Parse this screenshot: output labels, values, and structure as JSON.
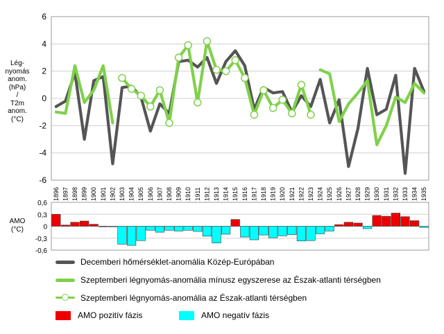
{
  "chart_data": [
    {
      "type": "line",
      "ylabel_lines": [
        "Lég-",
        "nyomás",
        "anom.",
        "(hPa)",
        "/",
        "T2m",
        "anom.",
        "(°C)"
      ],
      "ylim": [
        -6,
        6
      ],
      "yticks": [
        "6",
        "4",
        "2",
        "0",
        "-2",
        "-4",
        "-6"
      ],
      "x": [
        1896,
        1897,
        1898,
        1899,
        1900,
        1901,
        1902,
        1903,
        1904,
        1905,
        1906,
        1907,
        1908,
        1909,
        1910,
        1911,
        1912,
        1913,
        1914,
        1915,
        1916,
        1917,
        1918,
        1919,
        1920,
        1921,
        1922,
        1923,
        1924,
        1925,
        1926,
        1927,
        1928,
        1929,
        1930,
        1931,
        1932,
        1933,
        1934,
        1935
      ],
      "x_labels": [
        "1896",
        "1897",
        "1898",
        "1899",
        "1900",
        "1901",
        "1902",
        "1903",
        "1904",
        "1905",
        "1906",
        "1907",
        "1908",
        "1909",
        "1910",
        "1911",
        "1912",
        "1913",
        "1914",
        "1915",
        "1916",
        "1917",
        "1918",
        "1919",
        "1920",
        "1921",
        "1922",
        "1923",
        "1924",
        "1925",
        "1926",
        "1927",
        "1928",
        "1929",
        "1930",
        "1931",
        "1932",
        "1933",
        "1934",
        "1935"
      ],
      "grid": "horizontal",
      "series": [
        {
          "name": "Decemberi hőmérséklet-anomália Közép-Európában",
          "color": "#555555",
          "values": [
            -0.6,
            -0.2,
            1.9,
            -3.0,
            1.3,
            1.6,
            -4.8,
            0.8,
            0.9,
            0.1,
            -2.4,
            -0.4,
            -1.1,
            2.7,
            2.8,
            2.3,
            3.0,
            1.1,
            2.7,
            3.5,
            2.4,
            -0.8,
            0.8,
            0.4,
            0.5,
            -1.0,
            0.2,
            -0.6,
            1.4,
            -1.8,
            -0.1,
            -5.0,
            -2.2,
            2.2,
            -1.2,
            -0.8,
            1.7,
            -5.5,
            2.2,
            0.5
          ]
        },
        {
          "name": "Szeptemberi légnyomás-anomália mínusz egyszerese az Észak-atlanti térségben",
          "color": "#7fd14b",
          "values": [
            -1.0,
            -1.1,
            2.4,
            -0.3,
            0.6,
            2.4,
            -1.8,
            null,
            null,
            null,
            null,
            null,
            null,
            null,
            null,
            null,
            null,
            null,
            null,
            null,
            null,
            null,
            null,
            null,
            null,
            null,
            null,
            null,
            2.1,
            1.8,
            -1.7,
            -0.4,
            0.4,
            1.3,
            -3.4,
            -2.0,
            0.1,
            -0.3,
            1.1,
            0.4
          ]
        },
        {
          "name": "Szeptemberi légnyomás-anomália az Észak-atlanti térségben",
          "color": "#7fd14b",
          "values": [
            null,
            null,
            null,
            null,
            null,
            null,
            null,
            1.5,
            0.7,
            0.2,
            -0.6,
            0.6,
            -1.8,
            3.0,
            3.9,
            -0.3,
            4.2,
            2.1,
            2.0,
            2.8,
            1.5,
            -1.2,
            0.6,
            -0.7,
            -0.1,
            -1.1,
            1.0,
            -1.2,
            null,
            null,
            null,
            null,
            null,
            null,
            null,
            null,
            null,
            null,
            null,
            null
          ]
        }
      ]
    },
    {
      "type": "bar",
      "ylabel_lines": [
        "AMO",
        "(°C)"
      ],
      "ylim": [
        -0.6,
        0.6
      ],
      "yticks": [
        "0,6",
        "0,3",
        "0",
        "-0,3",
        "-0,6"
      ],
      "x": [
        1896,
        1897,
        1898,
        1899,
        1900,
        1901,
        1902,
        1903,
        1904,
        1905,
        1906,
        1907,
        1908,
        1909,
        1910,
        1911,
        1912,
        1913,
        1914,
        1915,
        1916,
        1917,
        1918,
        1919,
        1920,
        1921,
        1922,
        1923,
        1924,
        1925,
        1926,
        1927,
        1928,
        1929,
        1930,
        1931,
        1932,
        1933,
        1934,
        1935
      ],
      "values": [
        0.3,
        0.03,
        0.1,
        0.13,
        0.05,
        0.0,
        -0.01,
        -0.45,
        -0.48,
        -0.36,
        -0.1,
        -0.15,
        -0.1,
        -0.12,
        -0.1,
        -0.13,
        -0.25,
        -0.42,
        -0.2,
        0.17,
        -0.27,
        -0.34,
        -0.22,
        -0.29,
        -0.24,
        -0.21,
        -0.37,
        -0.36,
        -0.19,
        -0.12,
        0.04,
        0.1,
        0.08,
        -0.06,
        0.27,
        0.25,
        0.33,
        0.24,
        0.14,
        -0.03
      ],
      "series_names": [
        "AMO pozitív fázis",
        "AMO negatív fázis"
      ],
      "positive_color": "#ee0000",
      "negative_color": "#00ffff"
    }
  ],
  "legend": {
    "dark_line_label": "Decemberi hőmérséklet-anomália Közép-Európában",
    "green_line_label": "Szeptemberi légnyomás-anomália mínusz egyszerese az Észak-atlanti térségben",
    "green_marker_label": "Szeptemberi légnyomás-anomália az Észak-atlanti térségben",
    "amo_positive_label": "AMO pozitív fázis",
    "amo_negative_label": "AMO negatív fázis",
    "dark_color": "#555555",
    "green_color": "#7fd14b",
    "red_color": "#ee0000",
    "cyan_color": "#00ffff"
  }
}
